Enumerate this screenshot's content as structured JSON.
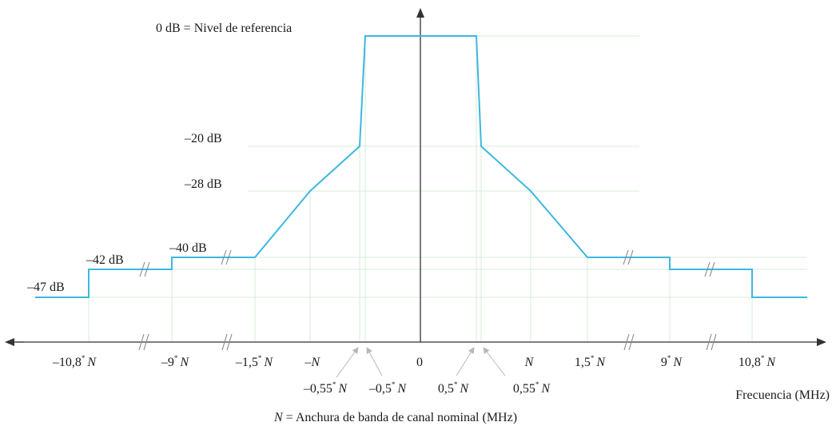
{
  "colors": {
    "mask": "#3db8e0",
    "grid": "#d4ecd8",
    "axis": "#333333",
    "pointer": "#b8b8b8"
  },
  "icons": {
    "axis_break": "double-slash-break-icon",
    "x_arrow": "arrowhead-icon",
    "y_arrow": "arrowhead-icon"
  },
  "labels": {
    "reference": "0 dB = Nivel de referencia",
    "x_axis": "Frecuencia (MHz)",
    "footnote_symbol": "N",
    "footnote_text": " = Anchura de banda de canal nominal (MHz)"
  },
  "db_labels": [
    "–20 dB",
    "–28 dB",
    "–40 dB",
    "–42 dB",
    "–47 dB"
  ],
  "freq_labels": [
    {
      "num": "–10,8",
      "star": "*",
      "sym": "N"
    },
    {
      "num": "–9",
      "star": "*",
      "sym": "N"
    },
    {
      "num": "–1,5",
      "star": "*",
      "sym": "N"
    },
    {
      "num": "–",
      "star": "",
      "sym": "N"
    },
    {
      "num": "–0,55",
      "star": "*",
      "sym": "N"
    },
    {
      "num": "–0,5",
      "star": "*",
      "sym": "N"
    },
    {
      "num": "0",
      "star": "",
      "sym": ""
    },
    {
      "num": "0,5",
      "star": "*",
      "sym": "N"
    },
    {
      "num": "0,55",
      "star": "*",
      "sym": "N"
    },
    {
      "num": "",
      "star": "",
      "sym": "N"
    },
    {
      "num": "1,5",
      "star": "*",
      "sym": "N"
    },
    {
      "num": "9",
      "star": "*",
      "sym": "N"
    },
    {
      "num": "10,8",
      "star": "*",
      "sym": "N"
    }
  ]
}
